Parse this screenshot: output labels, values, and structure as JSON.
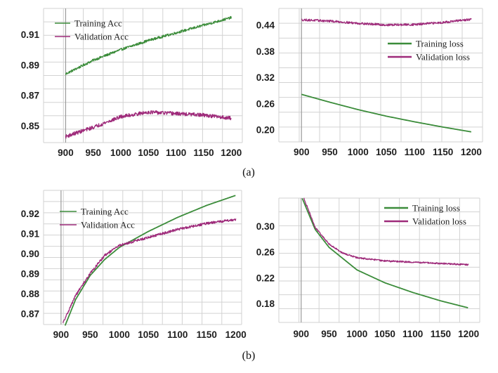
{
  "captions": {
    "a": "(a)",
    "b": "(b)"
  },
  "colors": {
    "training": "#3b8c3a",
    "validation": "#9e2a7a"
  },
  "chart_data": [
    {
      "id": "a-acc",
      "type": "line",
      "title": "",
      "xlabel": "",
      "ylabel": "",
      "xlim": [
        860,
        1220
      ],
      "ylim": [
        0.839,
        0.927
      ],
      "xticks": [
        900,
        950,
        1000,
        1050,
        1100,
        1150,
        1200
      ],
      "yticks": [
        0.85,
        0.87,
        0.89,
        0.91
      ],
      "ytick_labels": [
        "0.85",
        "0.87",
        "0.89",
        "0.91"
      ],
      "vline_x": 900,
      "legend": "top-left",
      "legend_style": "thin",
      "series": [
        {
          "name": "Training Acc",
          "color": "#3b8c3a",
          "noise": 0.0008,
          "x": [
            900,
            950,
            1000,
            1050,
            1100,
            1150,
            1200
          ],
          "y": [
            0.884,
            0.893,
            0.9,
            0.906,
            0.911,
            0.916,
            0.921
          ]
        },
        {
          "name": "Validation Acc",
          "color": "#9e2a7a",
          "noise": 0.0012,
          "x": [
            900,
            950,
            1000,
            1050,
            1100,
            1150,
            1200
          ],
          "y": [
            0.843,
            0.849,
            0.856,
            0.859,
            0.858,
            0.857,
            0.855
          ]
        }
      ]
    },
    {
      "id": "a-loss",
      "type": "line",
      "title": "",
      "xlabel": "",
      "ylabel": "",
      "xlim": [
        860,
        1220
      ],
      "ylim": [
        0.172,
        0.478
      ],
      "xticks": [
        900,
        950,
        1000,
        1050,
        1100,
        1150,
        1200
      ],
      "yticks": [
        0.2,
        0.26,
        0.32,
        0.38,
        0.44
      ],
      "ytick_labels": [
        "0.20",
        "0.26",
        "0.32",
        "0.38",
        "0.44"
      ],
      "vline_x": 900,
      "legend": "top-right",
      "legend_style": "thick",
      "series": [
        {
          "name": "Training loss",
          "color": "#3b8c3a",
          "noise": 0,
          "x": [
            900,
            950,
            1000,
            1050,
            1100,
            1150,
            1200
          ],
          "y": [
            0.281,
            0.263,
            0.246,
            0.231,
            0.218,
            0.206,
            0.195
          ]
        },
        {
          "name": "Validation loss",
          "color": "#9e2a7a",
          "noise": 0.0025,
          "x": [
            900,
            950,
            1000,
            1050,
            1100,
            1150,
            1200
          ],
          "y": [
            0.452,
            0.449,
            0.444,
            0.44,
            0.441,
            0.446,
            0.453
          ]
        }
      ]
    },
    {
      "id": "b-acc",
      "type": "line",
      "title": "",
      "xlabel": "",
      "ylabel": "",
      "xlim": [
        870,
        1210
      ],
      "ylim": [
        0.8645,
        0.9315
      ],
      "xticks": [
        900,
        950,
        1000,
        1050,
        1100,
        1150,
        1200
      ],
      "yticks": [
        0.87,
        0.88,
        0.89,
        0.9,
        0.91,
        0.92
      ],
      "ytick_labels": [
        "0.87",
        "0.88",
        "0.89",
        "0.90",
        "0.91",
        "0.92"
      ],
      "vline_x": 900,
      "legend": "top-center",
      "legend_style": "thin",
      "series": [
        {
          "name": "Training Acc",
          "color": "#3b8c3a",
          "noise": 0,
          "x": [
            907,
            925,
            950,
            975,
            1000,
            1050,
            1100,
            1150,
            1200
          ],
          "y": [
            0.864,
            0.877,
            0.889,
            0.897,
            0.903,
            0.911,
            0.918,
            0.924,
            0.929
          ]
        },
        {
          "name": "Validation Acc",
          "color": "#9e2a7a",
          "noise": 0.0006,
          "x": [
            903,
            925,
            950,
            975,
            1000,
            1050,
            1100,
            1150,
            1200
          ],
          "y": [
            0.865,
            0.879,
            0.89,
            0.899,
            0.904,
            0.908,
            0.912,
            0.915,
            0.917
          ]
        }
      ]
    },
    {
      "id": "b-loss",
      "type": "line",
      "title": "",
      "xlabel": "",
      "ylabel": "",
      "xlim": [
        860,
        1220
      ],
      "ylim": [
        0.1505,
        0.3435
      ],
      "xticks": [
        900,
        950,
        1000,
        1050,
        1100,
        1150,
        1200
      ],
      "yticks": [
        0.18,
        0.22,
        0.26,
        0.3
      ],
      "ytick_labels": [
        "0.18",
        "0.22",
        "0.26",
        "0.30"
      ],
      "vline_x": 900,
      "legend": "top-right",
      "legend_style": "thick",
      "series": [
        {
          "name": "Training loss",
          "color": "#3b8c3a",
          "noise": 0,
          "x": [
            902,
            925,
            950,
            1000,
            1050,
            1100,
            1150,
            1200
          ],
          "y": [
            0.343,
            0.295,
            0.267,
            0.232,
            0.212,
            0.197,
            0.184,
            0.173
          ]
        },
        {
          "name": "Validation loss",
          "color": "#9e2a7a",
          "noise": 0.0012,
          "x": [
            905,
            925,
            950,
            975,
            1000,
            1050,
            1100,
            1150,
            1200
          ],
          "y": [
            0.343,
            0.298,
            0.272,
            0.258,
            0.251,
            0.246,
            0.244,
            0.242,
            0.24
          ]
        }
      ]
    }
  ]
}
